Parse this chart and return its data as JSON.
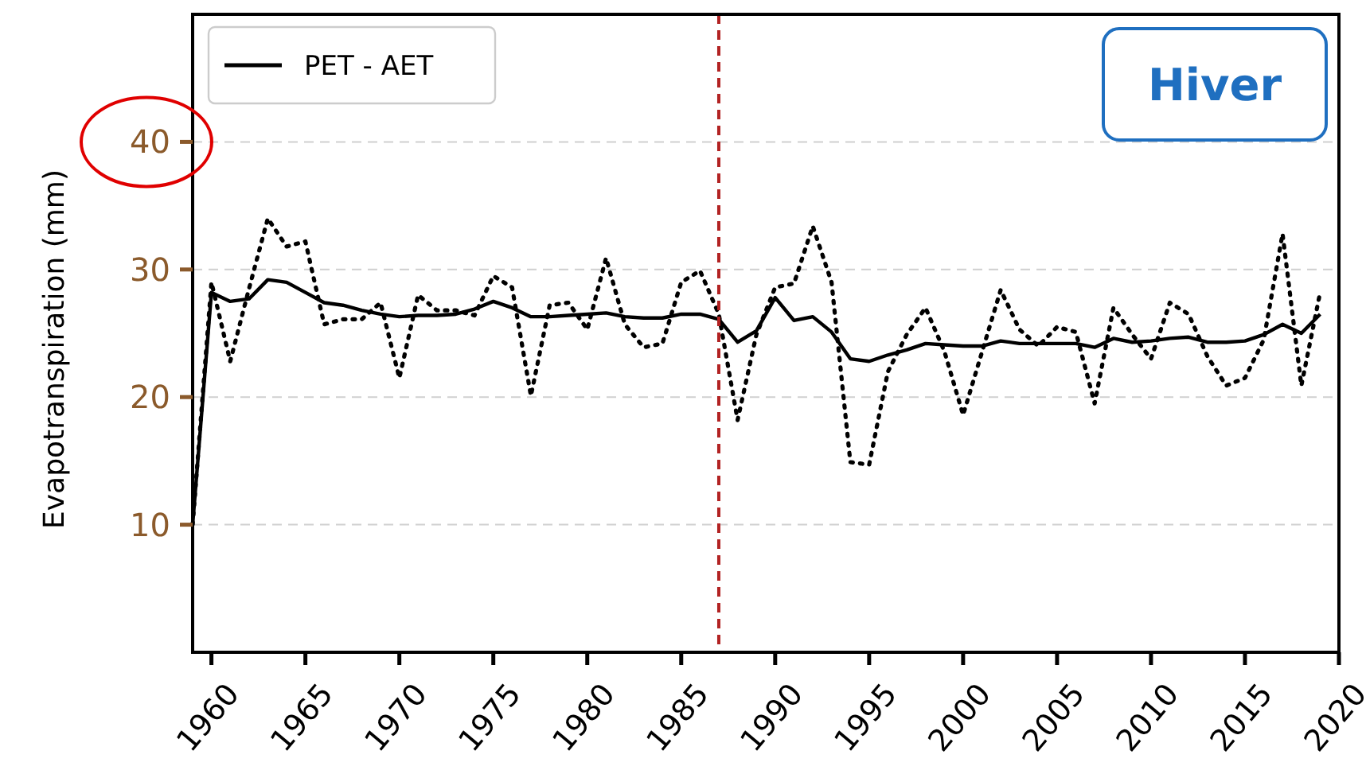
{
  "chart_data": {
    "type": "line",
    "ylabel": "Evapotranspiration (mm)",
    "x": [
      1959,
      1960,
      1961,
      1962,
      1963,
      1964,
      1965,
      1966,
      1967,
      1968,
      1969,
      1970,
      1971,
      1972,
      1973,
      1974,
      1975,
      1976,
      1977,
      1978,
      1979,
      1980,
      1981,
      1982,
      1983,
      1984,
      1985,
      1986,
      1987,
      1988,
      1989,
      1990,
      1991,
      1992,
      1993,
      1994,
      1995,
      1996,
      1997,
      1998,
      1999,
      2000,
      2001,
      2002,
      2003,
      2004,
      2005,
      2006,
      2007,
      2008,
      2009,
      2010,
      2011,
      2012,
      2013,
      2014,
      2015,
      2016,
      2017,
      2018,
      2019
    ],
    "series": [
      {
        "name": "PET - AET",
        "color": "#000000",
        "line_style": "solid",
        "values": [
          10,
          28.2,
          27.5,
          27.7,
          29.2,
          29.0,
          28.2,
          27.4,
          27.2,
          26.8,
          26.5,
          26.3,
          26.4,
          26.4,
          26.5,
          26.9,
          27.5,
          27.0,
          26.3,
          26.3,
          26.4,
          26.5,
          26.6,
          26.3,
          26.2,
          26.2,
          26.5,
          26.5,
          26.1,
          24.3,
          25.2,
          27.8,
          26.0,
          26.3,
          25.1,
          23.0,
          22.8,
          23.3,
          23.7,
          24.2,
          24.1,
          24.0,
          24.0,
          24.4,
          24.2,
          24.2,
          24.2,
          24.2,
          23.9,
          24.6,
          24.3,
          24.4,
          24.6,
          24.7,
          24.3,
          24.3,
          24.4,
          24.9,
          25.7,
          25.0,
          26.5
        ]
      },
      {
        "color": "#000000",
        "line_style": "dotted",
        "values": [
          10,
          29.0,
          22.8,
          28.5,
          34.0,
          31.8,
          32.2,
          25.7,
          26.1,
          26.1,
          27.4,
          21.5,
          28.0,
          26.8,
          26.8,
          26.4,
          29.5,
          28.6,
          20.1,
          27.2,
          27.4,
          25.3,
          30.9,
          25.7,
          23.9,
          24.2,
          29.0,
          29.9,
          26.5,
          18.2,
          24.9,
          28.6,
          28.9,
          33.4,
          29.0,
          14.9,
          14.7,
          22.0,
          24.9,
          27.0,
          23.6,
          18.6,
          23.5,
          28.4,
          25.3,
          24.0,
          25.5,
          25.1,
          19.5,
          27.0,
          24.9,
          23.0,
          27.4,
          26.5,
          23.2,
          20.9,
          21.5,
          24.5,
          32.8,
          20.9,
          28.2
        ]
      }
    ],
    "xlim": [
      1959,
      2020
    ],
    "xticks": [
      1960,
      1965,
      1970,
      1975,
      1980,
      1985,
      1990,
      1995,
      2000,
      2005,
      2010,
      2015,
      2020
    ],
    "ylim": [
      0,
      50
    ],
    "yticks": [
      10,
      20,
      30,
      40
    ],
    "ref_lines": [
      {
        "axis": "x",
        "value": 1987,
        "color": "#b22222",
        "line_style": "dashed"
      }
    ],
    "annotations": [
      "Hiver"
    ],
    "grid": "y",
    "legend": "top left"
  }
}
